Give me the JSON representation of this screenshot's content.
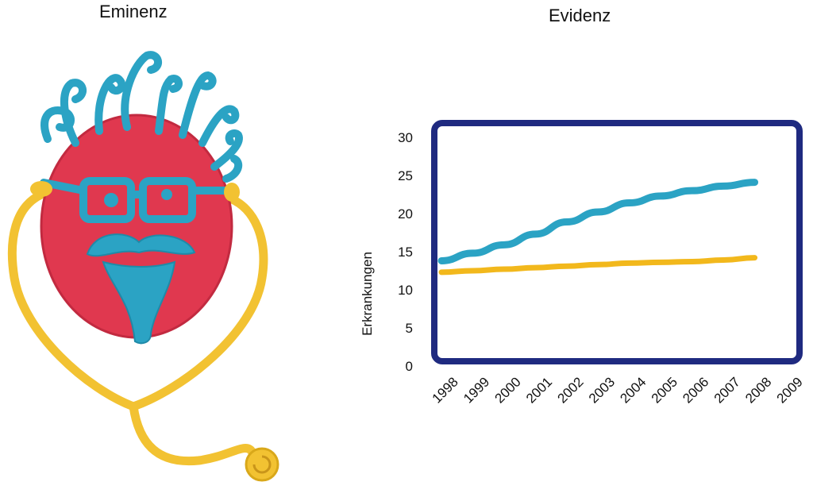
{
  "left_panel": {
    "title": "Eminenz"
  },
  "right_panel": {
    "title": "Evidenz"
  },
  "chart_data": {
    "type": "line",
    "title": "Evidenz",
    "xlabel": "",
    "ylabel": "Erkrankungen",
    "x": [
      "1998",
      "1999",
      "2000",
      "2001",
      "2002",
      "2003",
      "2004",
      "2005",
      "2006",
      "2007",
      "2008",
      "2009"
    ],
    "ylim": [
      0,
      30
    ],
    "yticks": [
      0,
      5,
      10,
      15,
      20,
      25,
      30
    ],
    "grid": false,
    "series": [
      {
        "values": [
          13.7,
          14.7,
          15.8,
          17.2,
          18.8,
          20.1,
          21.3,
          22.2,
          22.9,
          23.5,
          24.0,
          null
        ],
        "color": "#2ba3c4"
      },
      {
        "values": [
          12.2,
          12.4,
          12.6,
          12.8,
          13.0,
          13.2,
          13.4,
          13.5,
          13.6,
          13.8,
          14.1,
          null
        ],
        "color": "#f2b81c"
      }
    ],
    "colors": {
      "frame": "#1f2a80",
      "face": "#e0384f",
      "hair": "#2ba3c4",
      "stethoscope": "#f2c232"
    }
  }
}
